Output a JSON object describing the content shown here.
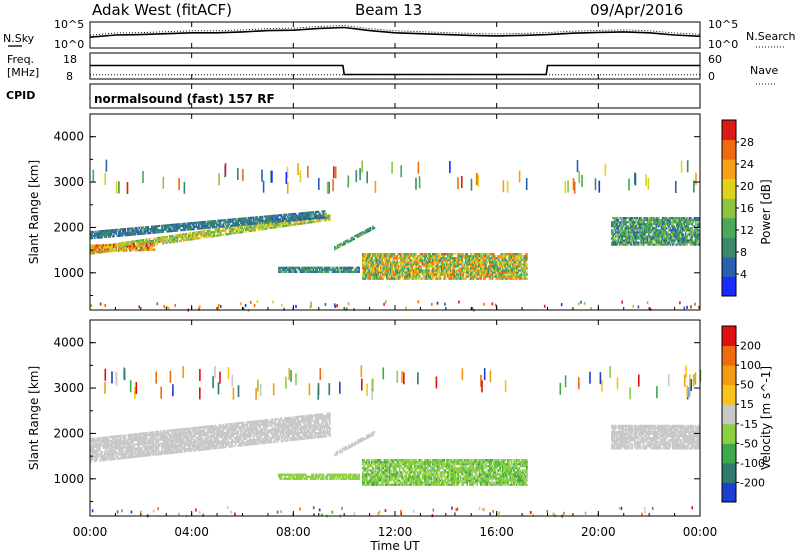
{
  "header": {
    "radar": "Adak West (fitACF)",
    "beam": "Beam 13",
    "date": "09/Apr/2016"
  },
  "noise_panel": {
    "left_label": "N.Sky",
    "right_label": "N.Search",
    "ticks": [
      "10^5",
      "10^0"
    ]
  },
  "freq_panel": {
    "left_label_1": "Freq.",
    "left_label_2": "[MHz]",
    "left_ticks": [
      "18",
      "8"
    ],
    "right_label": "Nave",
    "right_ticks": [
      "60",
      "0"
    ]
  },
  "cpid": {
    "label": "CPID",
    "text": "normalsound (fast) 157 RF"
  },
  "x_axis": {
    "label": "Time UT",
    "ticks": [
      "00:00",
      "04:00",
      "08:00",
      "12:00",
      "16:00",
      "20:00",
      "00:00"
    ]
  },
  "power_panel": {
    "ylabel": "Slant Range [km]",
    "yticks": [
      "1000",
      "2000",
      "3000",
      "4000"
    ],
    "colorbar_label": "Power [dB]",
    "colorbar_ticks": [
      "4",
      "8",
      "12",
      "16",
      "20",
      "24",
      "28"
    ],
    "colors": [
      "#1a2bff",
      "#2b5fb0",
      "#3a8a6a",
      "#4aa85a",
      "#8cc63f",
      "#e0d21a",
      "#f6a019",
      "#f06a10",
      "#e01818"
    ]
  },
  "velocity_panel": {
    "ylabel": "Slant Range [km]",
    "yticks": [
      "1000",
      "2000",
      "3000",
      "4000"
    ],
    "colorbar_label": "Velocity [m s^-1]",
    "colorbar_ticks": [
      "200",
      "100",
      "50",
      "15",
      "-15",
      "-50",
      "-100",
      "-200"
    ],
    "colors": [
      "#1d3fcf",
      "#2e7a6e",
      "#3fa84a",
      "#8ccf3f",
      "#c8c8c8",
      "#f7c21a",
      "#f59b12",
      "#f06a10",
      "#e01010"
    ]
  },
  "chart_data": [
    {
      "type": "line",
      "title": "",
      "xlabel": "",
      "ylabel": "N.Sky",
      "x_range_hours": [
        0,
        24
      ],
      "series": [
        {
          "name": "N.Sky",
          "y_log10": [
            2.0,
            2.5,
            2.6,
            2.8,
            3.0,
            3.0,
            3.2,
            3.5,
            3.6,
            4.0,
            4.2,
            3.5,
            3.0,
            2.8,
            2.6,
            2.4,
            2.3,
            2.4,
            2.6,
            2.9,
            3.1,
            3.2,
            3.0,
            2.5,
            2.2
          ]
        }
      ]
    },
    {
      "type": "line",
      "title": "",
      "xlabel": "",
      "ylabel": "Freq. [MHz]",
      "x_hours": [
        0,
        9.95,
        10.0,
        17.95,
        18.0,
        24
      ],
      "series": [
        {
          "name": "Freq.",
          "values": [
            15.5,
            15.5,
            10.5,
            10.5,
            15.5,
            15.5
          ]
        },
        {
          "name": "Nave",
          "values": [
            14,
            14,
            14,
            14,
            14,
            14
          ]
        }
      ]
    },
    {
      "type": "heatmap",
      "title": "",
      "ylabel": "Slant Range [km]",
      "xlabel": "Time UT",
      "quantity": "Power [dB]",
      "x_range_hours": [
        0,
        24
      ],
      "y_range_km": [
        180,
        4500
      ],
      "value_range": [
        0,
        30
      ],
      "regions": [
        {
          "t_start": 0.0,
          "t_end": 9.4,
          "r_start": 1400,
          "r_end": 1540,
          "r_slope_km_per_h": 80,
          "v_min": 10,
          "v_max": 22
        },
        {
          "t_start": 0.0,
          "t_end": 2.5,
          "r_start": 1440,
          "r_end": 1620,
          "r_slope_km_per_h": 20,
          "v_min": 14,
          "v_max": 28
        },
        {
          "t_start": 0.0,
          "t_end": 9.2,
          "r_start": 1740,
          "r_end": 1880,
          "r_slope_km_per_h": 50,
          "v_min": 4,
          "v_max": 10
        },
        {
          "t_start": 7.4,
          "t_end": 10.6,
          "r_start": 1000,
          "r_end": 1110,
          "r_slope_km_per_h": 0,
          "v_min": 5,
          "v_max": 12
        },
        {
          "t_start": 9.6,
          "t_end": 11.2,
          "r_start": 1500,
          "r_end": 1560,
          "r_slope_km_per_h": 300,
          "v_min": 6,
          "v_max": 14
        },
        {
          "t_start": 10.7,
          "t_end": 17.2,
          "r_start": 850,
          "r_end": 1420,
          "r_slope_km_per_h": 0,
          "v_min": 8,
          "v_max": 26
        },
        {
          "t_start": 20.5,
          "t_end": 24.0,
          "r_start": 1600,
          "r_end": 2200,
          "r_slope_km_per_h": 0,
          "v_min": 4,
          "v_max": 16
        }
      ]
    },
    {
      "type": "heatmap",
      "title": "",
      "ylabel": "Slant Range [km]",
      "xlabel": "Time UT",
      "quantity": "Velocity [m s^-1]",
      "x_range_hours": [
        0,
        24
      ],
      "y_range_km": [
        180,
        4500
      ],
      "value_range": [
        -200,
        200
      ],
      "regions": [
        {
          "t_start": 0.0,
          "t_end": 9.4,
          "r_start": 1360,
          "r_end": 1880,
          "r_slope_km_per_h": 60,
          "v_min": -15,
          "v_max": 15
        },
        {
          "t_start": 7.4,
          "t_end": 10.6,
          "r_start": 980,
          "r_end": 1090,
          "r_slope_km_per_h": 0,
          "v_min": -60,
          "v_max": -20
        },
        {
          "t_start": 9.6,
          "t_end": 11.2,
          "r_start": 1500,
          "r_end": 1560,
          "r_slope_km_per_h": 300,
          "v_min": -15,
          "v_max": 15
        },
        {
          "t_start": 10.7,
          "t_end": 17.2,
          "r_start": 850,
          "r_end": 1420,
          "r_slope_km_per_h": 0,
          "v_min": -80,
          "v_max": -20
        },
        {
          "t_start": 20.5,
          "t_end": 24.0,
          "r_start": 1650,
          "r_end": 2150,
          "r_slope_km_per_h": 0,
          "v_min": -15,
          "v_max": 15
        }
      ]
    }
  ]
}
